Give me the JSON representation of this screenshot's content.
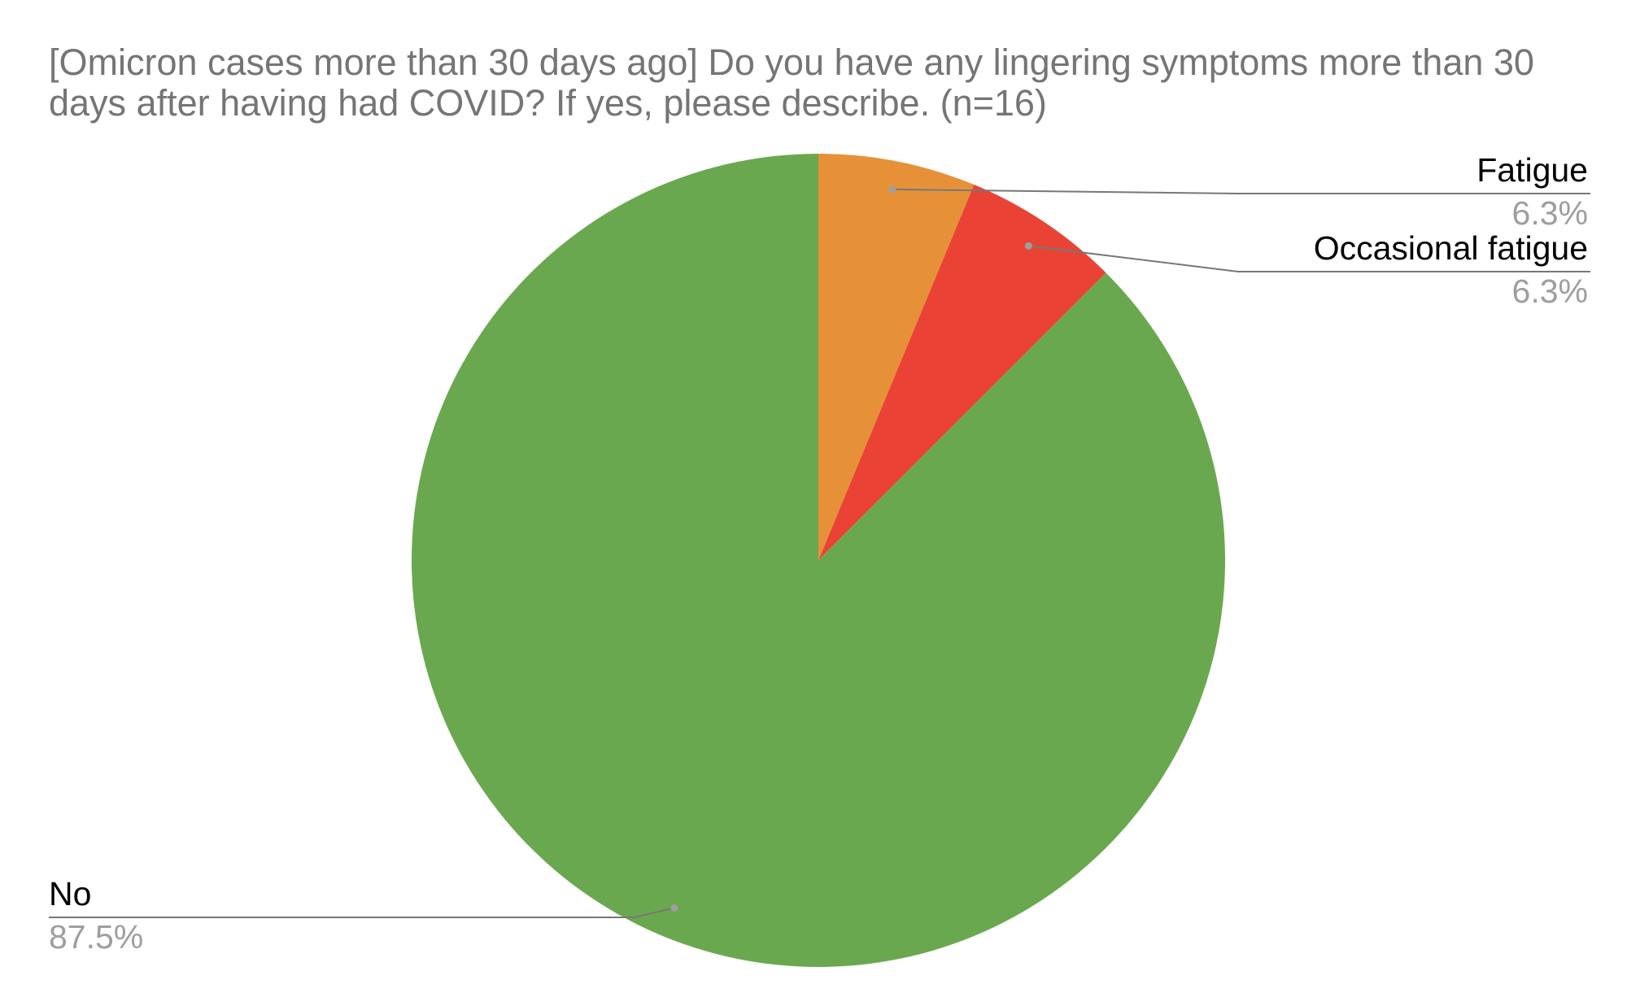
{
  "chart_data": {
    "type": "pie",
    "title": "[Omicron cases more than 30 days ago] Do you have any lingering symptoms more than 30 days after having had COVID?  If yes, please describe.    (n=16)",
    "title_lines": [
      "[Omicron cases more than 30 days ago] Do you have any lingering symptoms more than 30",
      "days after having had COVID?  If yes, please describe.    (n=16)"
    ],
    "slices": [
      {
        "label": "Fatigue",
        "value": 6.25,
        "percent_label": "6.3%",
        "color": "#e69138"
      },
      {
        "label": "Occasional fatigue",
        "value": 6.25,
        "percent_label": "6.3%",
        "color": "#ea4335"
      },
      {
        "label": "No",
        "value": 87.5,
        "percent_label": "87.5%",
        "color": "#6aa84f"
      }
    ],
    "start_angle": "12 o'clock",
    "direction": "clockwise",
    "legend": "none"
  }
}
